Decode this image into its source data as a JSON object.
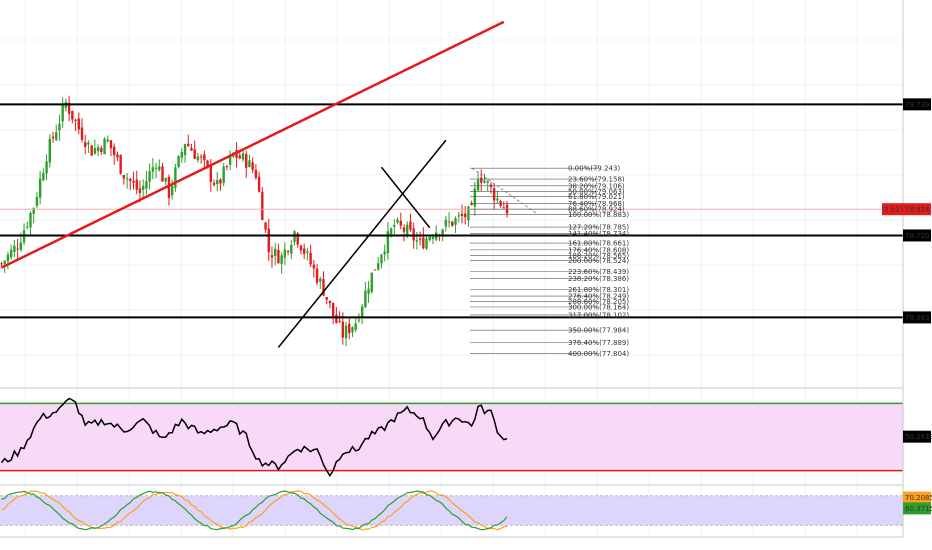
{
  "chart_data": [
    {
      "type": "candlestick",
      "title": "",
      "price_labels": [
        {
          "value": 79.739,
          "label": "79.739",
          "style": "level"
        },
        {
          "value": 78.924,
          "label": "78.924",
          "style": "current",
          "prefix": "0.61%"
        },
        {
          "value": 78.72,
          "label": "78.720",
          "style": "level"
        },
        {
          "value": 78.083,
          "label": "78.083",
          "style": "level"
        }
      ],
      "horizontal_levels": [
        79.739,
        78.72,
        78.083
      ],
      "current_price": 78.924,
      "percent_change": "0.61%",
      "ylim": [
        77.55,
        80.55
      ],
      "bull_color": "#2ca02c",
      "bear_color": "#e31b1b",
      "trendlines": [
        {
          "name": "rising-red-trendline",
          "color": "#e31b1b",
          "from": [
            0,
            78.47
          ],
          "to": [
            156,
            80.38
          ]
        },
        {
          "name": "rising-black-trendline",
          "color": "#000000",
          "from": [
            86,
            77.85
          ],
          "to": [
            138,
            79.46
          ]
        },
        {
          "name": "falling-black-trendline",
          "color": "#000000",
          "from": [
            118,
            79.25
          ],
          "to": [
            133,
            78.78
          ]
        }
      ],
      "fibonacci": {
        "levels": [
          {
            "ratio": 0.0,
            "label": "0.00%(79.243)"
          },
          {
            "ratio": 0.236,
            "label": "23.60%(79.158)"
          },
          {
            "ratio": 0.382,
            "label": "38.20%(79.106)"
          },
          {
            "ratio": 0.5,
            "label": "50.00%(79.063)"
          },
          {
            "ratio": 0.618,
            "label": "61.80%(79.021)"
          },
          {
            "ratio": 0.764,
            "label": "76.40%(78.968)"
          },
          {
            "ratio": 0.886,
            "label": "88.60%(78.924)"
          },
          {
            "ratio": 1.0,
            "label": "100.00%(78.883)"
          },
          {
            "ratio": 1.272,
            "label": "127.20%(78.785)"
          },
          {
            "ratio": 1.414,
            "label": "141.40%(78.734)"
          },
          {
            "ratio": 1.618,
            "label": "161.80%(78.661)"
          },
          {
            "ratio": 1.764,
            "label": "176.40%(78.608)"
          },
          {
            "ratio": 1.882,
            "label": "188.20%(78.565)"
          },
          {
            "ratio": 2.0,
            "label": "200.00%(78.524)"
          },
          {
            "ratio": 2.236,
            "label": "223.60%(78.439)"
          },
          {
            "ratio": 2.382,
            "label": "238.20%(78.386)"
          },
          {
            "ratio": 2.618,
            "label": "261.80%(78.301)"
          },
          {
            "ratio": 2.764,
            "label": "276.40%(78.249)"
          },
          {
            "ratio": 2.886,
            "label": "288.60%(78.205)"
          },
          {
            "ratio": 3.0,
            "label": "300.00%(78.164)"
          },
          {
            "ratio": 3.17,
            "label": "317.00%(78.102)"
          },
          {
            "ratio": 3.5,
            "label": "350.00%(77.984)"
          },
          {
            "ratio": 3.764,
            "label": "376.40%(77.889)"
          },
          {
            "ratio": 4.0,
            "label": "400.00%(77.804)"
          }
        ],
        "line_color": "#555555"
      }
    },
    {
      "type": "line",
      "indicator": "oscillator-1",
      "current_value": 50.2619,
      "current_label": "50.2619",
      "upper_line": 75,
      "lower_line": 25,
      "upper_color": "#2ca02c",
      "lower_color": "#e31b1b",
      "band_color": "#f9d9f8",
      "line_color": "#000000",
      "ylim": [
        15,
        85
      ]
    },
    {
      "type": "line",
      "indicator": "oscillator-2",
      "series_colors": [
        "#ff9f1c",
        "#2ca02c"
      ],
      "current_values": [
        {
          "value": 70.2085,
          "label": "70.2085",
          "color": "#ff9f1c"
        },
        {
          "value": 60.3715,
          "label": "60.3715",
          "color": "#2ca02c"
        }
      ],
      "band_color": "#ddd5fb",
      "ylim": [
        0,
        100
      ]
    }
  ]
}
